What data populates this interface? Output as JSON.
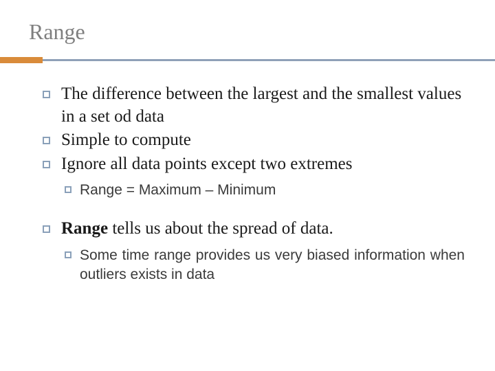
{
  "title": "Range",
  "colors": {
    "title": "#7f7f7f",
    "rule_main": "#8fa0b8",
    "rule_accent": "#d98b3a",
    "bullet_border": "#8aa0b9",
    "text": "#1a1a1a",
    "sub_text": "#3a3a3a",
    "background": "#ffffff"
  },
  "typography": {
    "title_fontsize": 32,
    "bullet_fontsize": 25,
    "sub_fontsize": 21,
    "title_family": "Georgia",
    "body_family": "Georgia",
    "sub_family": "Verdana"
  },
  "bullets": [
    {
      "text": "The difference between the largest and the smallest values in a set od data"
    },
    {
      "text": "Simple to compute"
    },
    {
      "text": "Ignore all data points except two extremes"
    }
  ],
  "sub1": "Range = Maximum – Minimum",
  "bullet4_prefix": "Range",
  "bullet4_rest": " tells us about the spread of data.",
  "sub2": "Some time range provides us very biased information when outliers exists in data"
}
